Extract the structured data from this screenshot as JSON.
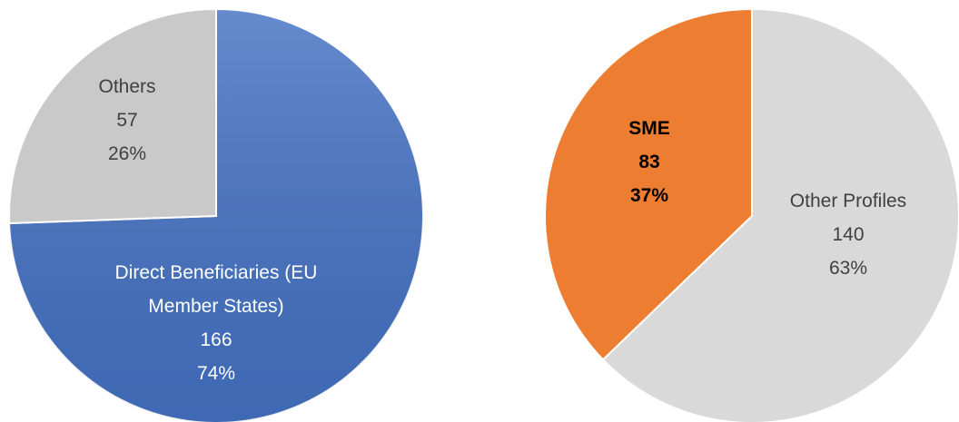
{
  "chart_data": [
    {
      "type": "pie",
      "categories": [
        "Direct Beneficiaries (EU Member States)",
        "Others"
      ],
      "values": [
        166,
        57
      ],
      "percent_labels": [
        "74%",
        "26%"
      ],
      "colors": [
        "#4472c4",
        "#c9c9c9"
      ],
      "label_colors": [
        "#ffffff",
        "#404040"
      ],
      "label_bold": [
        false,
        false
      ]
    },
    {
      "type": "pie",
      "categories": [
        "Other Profiles",
        "SME"
      ],
      "values": [
        140,
        83
      ],
      "percent_labels": [
        "63%",
        "37%"
      ],
      "colors": [
        "#d9d9d9",
        "#ed7d31"
      ],
      "label_colors": [
        "#404040",
        "#000000"
      ],
      "label_bold": [
        false,
        true
      ]
    }
  ]
}
